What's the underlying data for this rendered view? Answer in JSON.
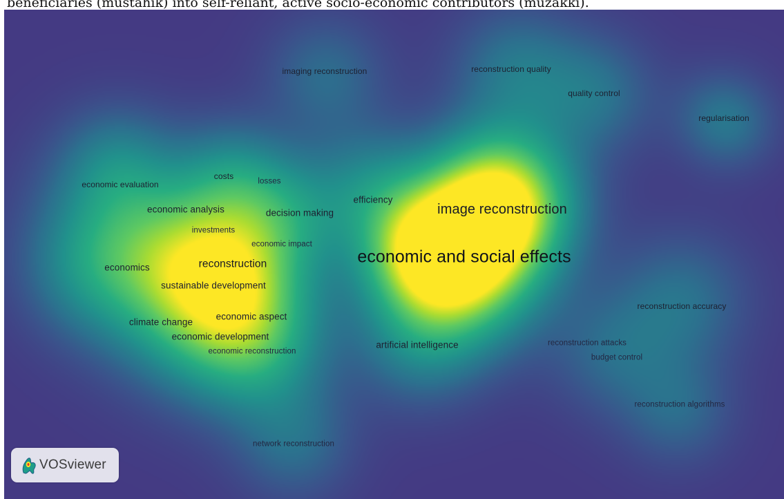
{
  "caption": "beneficiaries (mustahik) into self-reliant, active socio-economic contributors (muzakki).",
  "colors": {
    "background": "#443a83",
    "low_density": "#2d6e8e",
    "mid_density": "#21918c",
    "high_density": "#5ec962",
    "peak_density": "#fde725"
  },
  "map": {
    "terms": [
      {
        "label": "imaging reconstruction",
        "size": "xs",
        "density": 0.3
      },
      {
        "label": "reconstruction quality",
        "size": "xs",
        "density": 0.35
      },
      {
        "label": "quality control",
        "size": "xs",
        "density": 0.32
      },
      {
        "label": "regularisation",
        "size": "xs",
        "density": 0.25
      },
      {
        "label": "costs",
        "size": "xs",
        "density": 0.35
      },
      {
        "label": "losses",
        "size": "xxs",
        "density": 0.28
      },
      {
        "label": "economic evaluation",
        "size": "xs",
        "density": 0.32
      },
      {
        "label": "efficiency",
        "size": "s",
        "density": 0.38
      },
      {
        "label": "economic analysis",
        "size": "s",
        "density": 0.38
      },
      {
        "label": "decision making",
        "size": "s",
        "density": 0.36
      },
      {
        "label": "image reconstruction",
        "size": "l",
        "density": 0.9
      },
      {
        "label": "investments",
        "size": "xxs",
        "density": 0.36
      },
      {
        "label": "economic impact",
        "size": "xxs",
        "density": 0.36
      },
      {
        "label": "economics",
        "size": "s",
        "density": 0.38
      },
      {
        "label": "reconstruction",
        "size": "m",
        "density": 0.6
      },
      {
        "label": "economic and social effects",
        "size": "xl",
        "density": 1.0
      },
      {
        "label": "sustainable development",
        "size": "s",
        "density": 0.42
      },
      {
        "label": "reconstruction accuracy",
        "size": "xs",
        "density": 0.3
      },
      {
        "label": "economic aspect",
        "size": "s",
        "density": 0.4
      },
      {
        "label": "climate change",
        "size": "s",
        "density": 0.36
      },
      {
        "label": "economic development",
        "size": "s",
        "density": 0.4
      },
      {
        "label": "artificial intelligence",
        "size": "s",
        "density": 0.34
      },
      {
        "label": "reconstruction attacks",
        "size": "xxs",
        "density": 0.26
      },
      {
        "label": "economic reconstruction",
        "size": "xxs",
        "density": 0.34
      },
      {
        "label": "budget control",
        "size": "xxs",
        "density": 0.28
      },
      {
        "label": "reconstruction algorithms",
        "size": "xxs",
        "density": 0.3
      },
      {
        "label": "network reconstruction",
        "size": "xxs",
        "density": 0.3
      }
    ]
  },
  "logo": {
    "icon": "vosviewer-logo-icon",
    "text": "VOSviewer"
  }
}
